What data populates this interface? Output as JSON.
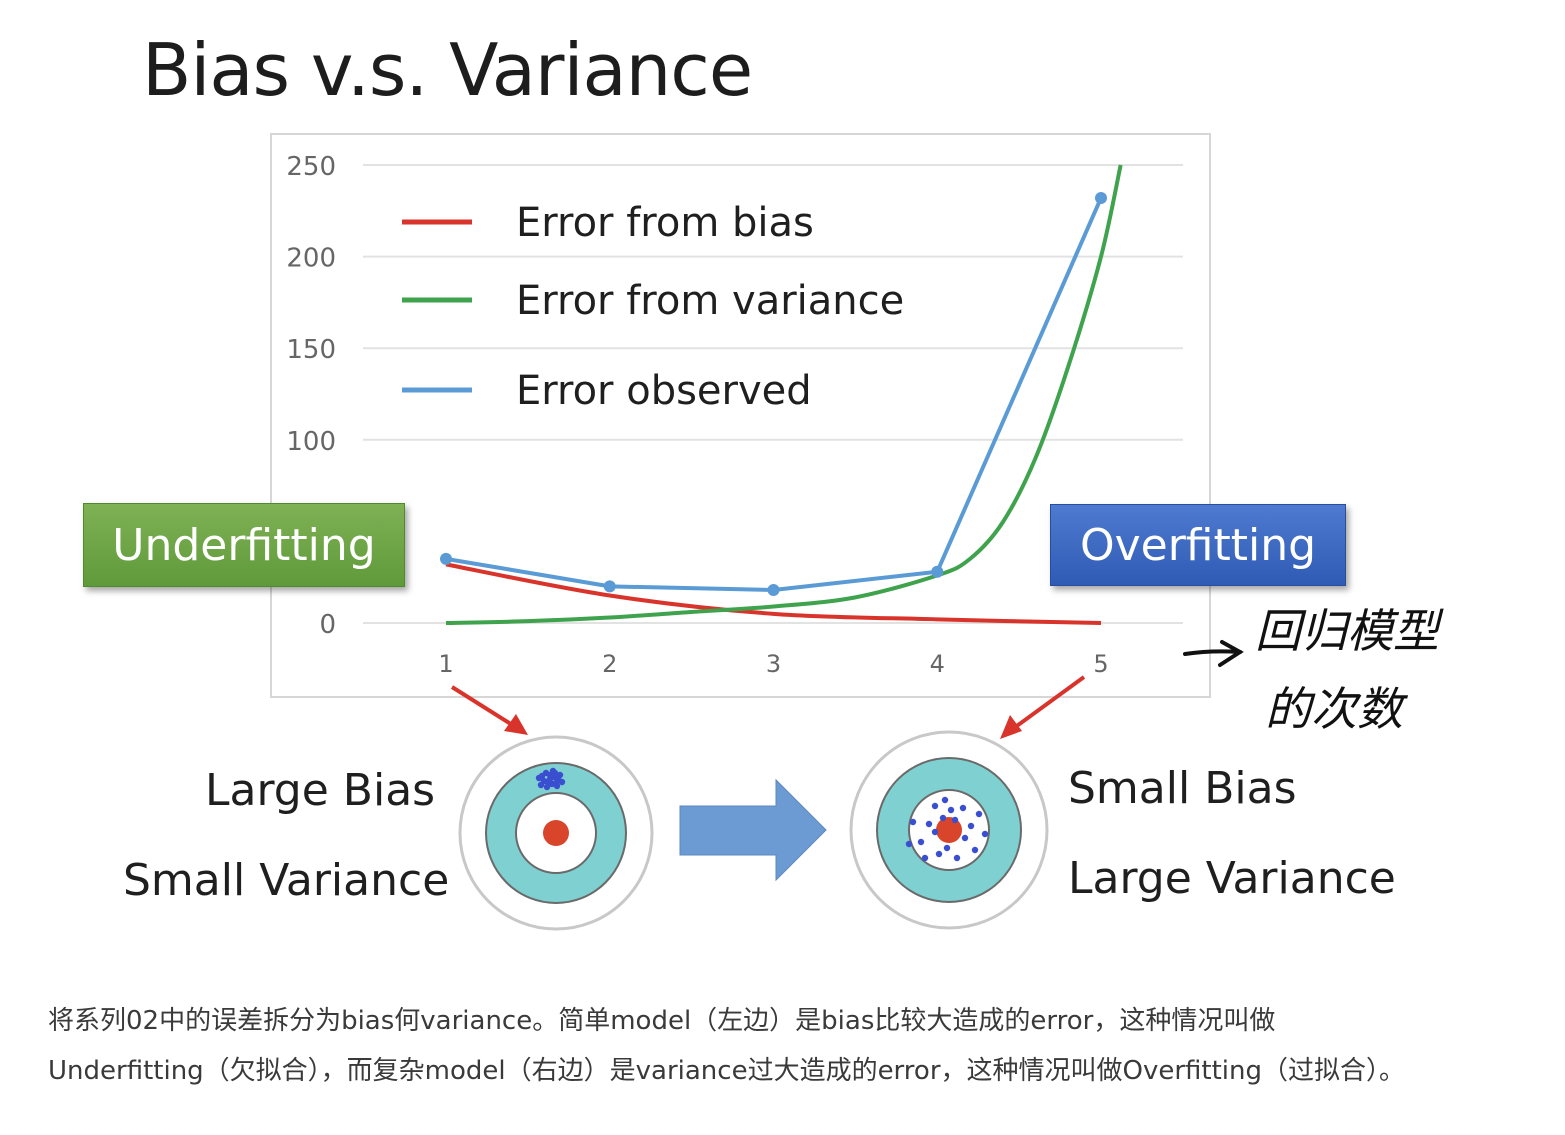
{
  "title": "Bias v.s. Variance",
  "chart_data": {
    "type": "line",
    "x": [
      1,
      2,
      3,
      4,
      5
    ],
    "ylim": [
      0,
      250
    ],
    "xlim": [
      1,
      5
    ],
    "y_ticks": [
      "0",
      "100",
      "150",
      "200",
      "250"
    ],
    "x_ticks": [
      "1",
      "2",
      "3",
      "4",
      "5"
    ],
    "grid": true,
    "legend_position": "top-left",
    "series": [
      {
        "name": "Error from bias",
        "color": "#d9342b",
        "points": [
          [
            1,
            32
          ],
          [
            2,
            15
          ],
          [
            3,
            5
          ],
          [
            4,
            2
          ],
          [
            5,
            0
          ]
        ]
      },
      {
        "name": "Error from variance",
        "color": "#3fa34d",
        "points": [
          [
            1,
            0
          ],
          [
            1.5,
            1
          ],
          [
            2,
            3
          ],
          [
            2.5,
            6
          ],
          [
            3,
            9
          ],
          [
            3.5,
            14
          ],
          [
            4,
            26
          ],
          [
            4.2,
            35
          ],
          [
            4.4,
            55
          ],
          [
            4.6,
            90
          ],
          [
            4.8,
            140
          ],
          [
            5.0,
            200
          ],
          [
            5.12,
            250
          ]
        ]
      },
      {
        "name": "Error observed",
        "color": "#5b9bd5",
        "markers": true,
        "points": [
          [
            1,
            35
          ],
          [
            2,
            20
          ],
          [
            3,
            18
          ],
          [
            4,
            28
          ],
          [
            5,
            232
          ]
        ]
      }
    ]
  },
  "badges": {
    "under": "Underfitting",
    "over": "Overfitting"
  },
  "left_target": {
    "line1": "Large Bias",
    "line2": "Small Variance"
  },
  "right_target": {
    "line1": "Small Bias",
    "line2": "Large Variance"
  },
  "annotation": {
    "line1": "回归模型",
    "line2": "的次数"
  },
  "caption": {
    "line1": "将系列02中的误差拆分为bias何variance。简单model（左边）是bias比较大造成的error，这种情况叫做",
    "line2": "Underfitting（欠拟合），而复杂model（右边）是variance过大造成的error，这种情况叫做Overfitting（过拟合）。"
  }
}
